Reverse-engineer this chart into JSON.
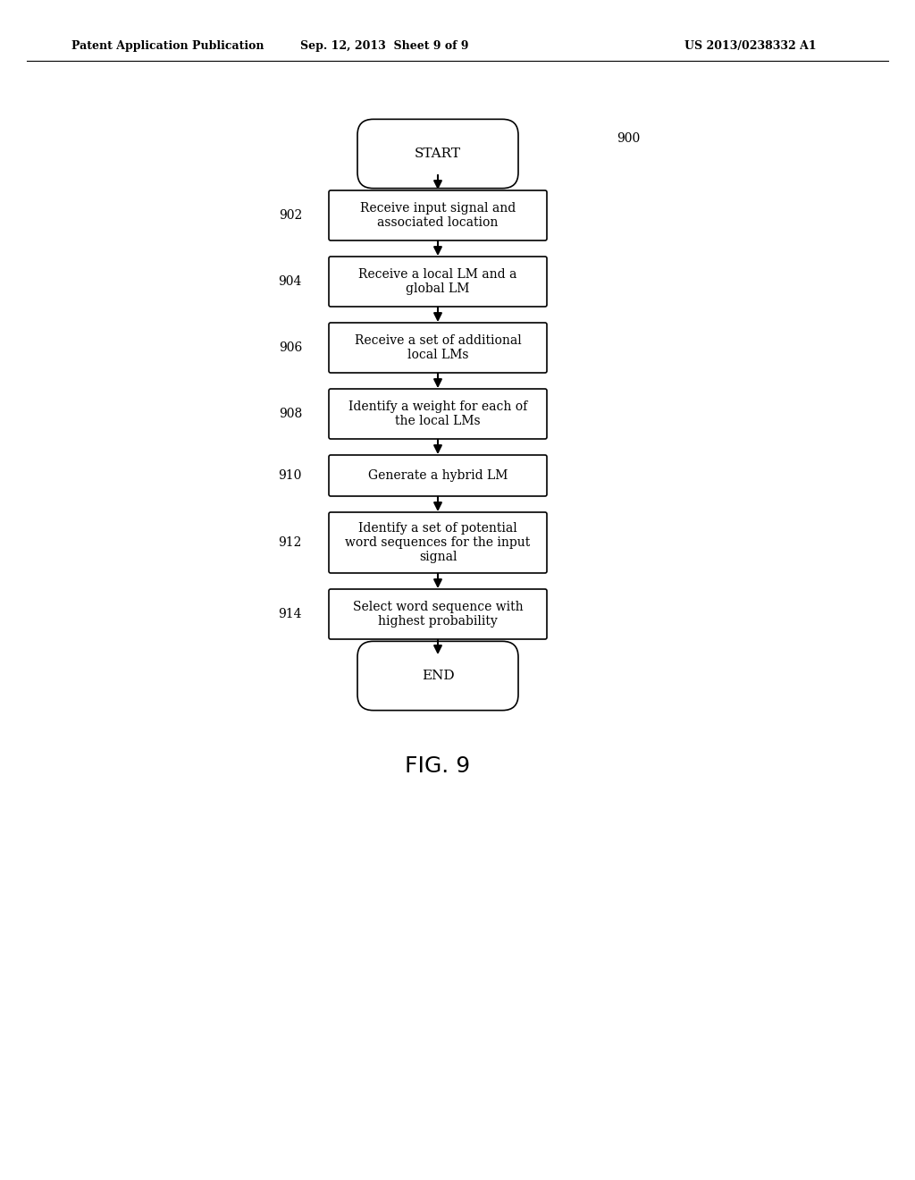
{
  "background_color": "#ffffff",
  "header_left": "Patent Application Publication",
  "header_center": "Sep. 12, 2013  Sheet 9 of 9",
  "header_right": "US 2013/0238332 A1",
  "figure_label": "FIG. 9",
  "diagram_number": "900",
  "start_label": "START",
  "end_label": "END",
  "steps": [
    {
      "number": "902",
      "text": "Receive input signal and\nassociated location"
    },
    {
      "number": "904",
      "text": "Receive a local LM and a\nglobal LM"
    },
    {
      "number": "906",
      "text": "Receive a set of additional\nlocal LMs"
    },
    {
      "number": "908",
      "text": "Identify a weight for each of\nthe local LMs"
    },
    {
      "number": "910",
      "text": "Generate a hybrid LM"
    },
    {
      "number": "912",
      "text": "Identify a set of potential\nword sequences for the input\nsignal"
    },
    {
      "number": "914",
      "text": "Select word sequence with\nhighest probability"
    }
  ],
  "header_fontsize": 9,
  "step_fontsize": 10,
  "label_fontsize": 10,
  "fig_label_fontsize": 18
}
